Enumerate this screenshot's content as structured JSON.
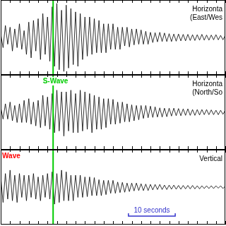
{
  "chart_data": [
    {
      "type": "line",
      "title": [
        "Horizonta",
        "(East/Wes"
      ],
      "color": "#000000",
      "tick_labels": false,
      "grid": false,
      "xlim": [
        0,
        48
      ],
      "xticks": [
        0,
        2,
        4,
        6,
        8,
        10,
        12,
        14,
        16,
        18,
        20,
        22,
        24,
        26,
        28,
        30,
        32,
        34,
        36,
        38,
        40,
        42,
        44,
        46,
        48
      ],
      "ylim": [
        -1.1,
        1.1
      ],
      "vlines": [
        {
          "x": 11.2,
          "color": "#00cc00"
        }
      ],
      "annotations": [],
      "x": [
        0,
        0.5,
        1,
        1.5,
        2,
        2.5,
        3,
        3.5,
        4,
        4.5,
        5,
        5.5,
        6,
        6.5,
        7,
        7.5,
        8,
        8.5,
        9,
        9.5,
        10,
        10.5,
        11,
        11.5,
        12,
        12.5,
        13,
        13.5,
        14,
        14.5,
        15,
        15.5,
        16,
        16.5,
        17,
        17.5,
        18,
        18.5,
        19,
        19.5,
        20,
        20.5,
        21,
        21.5,
        22,
        22.5,
        23,
        23.5,
        24,
        24.5,
        25,
        25.5,
        26,
        26.5,
        27,
        27.5,
        28,
        28.5,
        29,
        29.5,
        30,
        30.5,
        31,
        31.5,
        32,
        32.5,
        33,
        33.5,
        34,
        34.5,
        35,
        35.5,
        36,
        36.5,
        37,
        37.5,
        38,
        38.5,
        39,
        39.5,
        40,
        40.5,
        41,
        41.5,
        42,
        42.5,
        43,
        43.5,
        44,
        44.5,
        45,
        45.5,
        46,
        46.5,
        47,
        47.5,
        48
      ],
      "values": [
        0.1,
        -0.3,
        0.35,
        -0.2,
        0.3,
        -0.4,
        0.25,
        -0.3,
        0.4,
        -0.35,
        0.2,
        -0.5,
        0.45,
        -0.6,
        0.5,
        -0.4,
        0.55,
        -0.65,
        0.7,
        -0.5,
        0.6,
        -0.7,
        0.9,
        -0.85,
        1.0,
        -0.95,
        0.8,
        -1.0,
        0.95,
        -0.9,
        0.85,
        -0.8,
        0.75,
        -0.85,
        0.7,
        -0.65,
        0.6,
        -0.55,
        0.6,
        -0.5,
        0.55,
        -0.45,
        0.5,
        -0.45,
        0.4,
        -0.45,
        0.4,
        -0.35,
        0.4,
        -0.35,
        0.3,
        -0.35,
        0.3,
        -0.25,
        0.3,
        -0.28,
        0.25,
        -0.22,
        0.25,
        -0.2,
        0.22,
        -0.2,
        0.18,
        -0.2,
        0.15,
        -0.15,
        0.14,
        -0.13,
        0.15,
        -0.12,
        0.13,
        -0.12,
        0.11,
        -0.12,
        0.1,
        -0.11,
        0.1,
        -0.1,
        0.09,
        -0.1,
        0.09,
        -0.09,
        0.08,
        -0.09,
        0.08,
        -0.08,
        0.09,
        -0.08,
        0.07,
        -0.08,
        0.07,
        -0.07,
        0.08,
        -0.07,
        0.06,
        -0.07,
        0.06
      ]
    },
    {
      "type": "line",
      "title": [
        "Horizonta",
        "(North/So"
      ],
      "color": "#000000",
      "tick_labels": false,
      "grid": false,
      "xlim": [
        0,
        48
      ],
      "xticks": [
        0,
        2,
        4,
        6,
        8,
        10,
        12,
        14,
        16,
        18,
        20,
        22,
        24,
        26,
        28,
        30,
        32,
        34,
        36,
        38,
        40,
        42,
        44,
        46,
        48
      ],
      "ylim": [
        -1.1,
        1.1
      ],
      "vlines": [
        {
          "x": 11.2,
          "color": "#00cc00"
        }
      ],
      "annotations": [
        {
          "text": "S-Wave",
          "x": 8.7,
          "color": "#00cc00"
        }
      ],
      "x": [
        0,
        0.5,
        1,
        1.5,
        2,
        2.5,
        3,
        3.5,
        4,
        4.5,
        5,
        5.5,
        6,
        6.5,
        7,
        7.5,
        8,
        8.5,
        9,
        9.5,
        10,
        10.5,
        11,
        11.5,
        12,
        12.5,
        13,
        13.5,
        14,
        14.5,
        15,
        15.5,
        16,
        16.5,
        17,
        17.5,
        18,
        18.5,
        19,
        19.5,
        20,
        20.5,
        21,
        21.5,
        22,
        22.5,
        23,
        23.5,
        24,
        24.5,
        25,
        25.5,
        26,
        26.5,
        27,
        27.5,
        28,
        28.5,
        29,
        29.5,
        30,
        30.5,
        31,
        31.5,
        32,
        32.5,
        33,
        33.5,
        34,
        34.5,
        35,
        35.5,
        36,
        36.5,
        37,
        37.5,
        38,
        38.5,
        39,
        39.5,
        40,
        40.5,
        41,
        41.5,
        42,
        42.5,
        43,
        43.5,
        44,
        44.5,
        45,
        45.5,
        46,
        46.5,
        47,
        47.5,
        48
      ],
      "values": [
        0.15,
        -0.2,
        0.25,
        -0.2,
        0.3,
        -0.25,
        0.2,
        -0.3,
        0.25,
        -0.3,
        0.35,
        -0.3,
        0.4,
        -0.35,
        0.3,
        -0.4,
        0.35,
        -0.45,
        0.5,
        -0.4,
        0.45,
        -0.5,
        0.55,
        -0.6,
        0.65,
        -0.55,
        0.6,
        -0.7,
        0.6,
        -0.55,
        0.65,
        -0.6,
        0.55,
        -0.6,
        0.65,
        -0.55,
        0.6,
        -0.5,
        0.55,
        -0.6,
        0.5,
        -0.5,
        0.45,
        -0.5,
        0.4,
        -0.45,
        0.4,
        -0.35,
        0.38,
        -0.35,
        0.3,
        -0.32,
        0.3,
        -0.28,
        0.25,
        -0.28,
        0.22,
        -0.25,
        0.2,
        -0.22,
        0.2,
        -0.18,
        0.2,
        -0.16,
        0.18,
        -0.15,
        0.16,
        -0.14,
        0.13,
        -0.14,
        0.12,
        -0.13,
        0.12,
        -0.11,
        0.12,
        -0.1,
        0.11,
        -0.1,
        0.1,
        -0.09,
        0.1,
        -0.09,
        0.08,
        -0.09,
        0.08,
        -0.08,
        0.08,
        -0.07,
        0.08,
        -0.07,
        0.07,
        -0.07,
        0.06,
        -0.07,
        0.06,
        -0.06,
        0.06
      ]
    },
    {
      "type": "line",
      "title": [
        "Vertical"
      ],
      "color": "#000000",
      "tick_labels": false,
      "grid": false,
      "xlim": [
        0,
        48
      ],
      "xticks": [
        0,
        2,
        4,
        6,
        8,
        10,
        12,
        14,
        16,
        18,
        20,
        22,
        24,
        26,
        28,
        30,
        32,
        34,
        36,
        38,
        40,
        42,
        44,
        46,
        48
      ],
      "ylim": [
        -1.1,
        1.1
      ],
      "vlines": [
        {
          "x": 11.2,
          "color": "#00cc00"
        }
      ],
      "annotations": [
        {
          "text": "Wave",
          "x": 0,
          "color": "#ff0000"
        }
      ],
      "scale_bar": {
        "text": "10 seconds",
        "x_start": 27.3,
        "x_end": 37.3,
        "color": "#3333cc"
      },
      "x": [
        0,
        0.5,
        1,
        1.5,
        2,
        2.5,
        3,
        3.5,
        4,
        4.5,
        5,
        5.5,
        6,
        6.5,
        7,
        7.5,
        8,
        8.5,
        9,
        9.5,
        10,
        10.5,
        11,
        11.5,
        12,
        12.5,
        13,
        13.5,
        14,
        14.5,
        15,
        15.5,
        16,
        16.5,
        17,
        17.5,
        18,
        18.5,
        19,
        19.5,
        20,
        20.5,
        21,
        21.5,
        22,
        22.5,
        23,
        23.5,
        24,
        24.5,
        25,
        25.5,
        26,
        26.5,
        27,
        27.5,
        28,
        28.5,
        29,
        29.5,
        30,
        30.5,
        31,
        31.5,
        32,
        32.5,
        33,
        33.5,
        34,
        34.5,
        35,
        35.5,
        36,
        36.5,
        37,
        37.5,
        38,
        38.5,
        39,
        39.5,
        40,
        40.5,
        41,
        41.5,
        42,
        42.5,
        43,
        43.5,
        44,
        44.5,
        45,
        45.5,
        46,
        46.5,
        47,
        47.5,
        48
      ],
      "values": [
        0.3,
        -0.45,
        0.4,
        -0.35,
        0.5,
        -0.4,
        0.35,
        -0.45,
        0.4,
        -0.3,
        0.35,
        -0.4,
        0.35,
        -0.3,
        0.4,
        -0.35,
        0.3,
        -0.4,
        0.35,
        -0.3,
        0.4,
        -0.35,
        0.45,
        -0.5,
        0.4,
        -0.45,
        0.5,
        -0.4,
        0.45,
        -0.4,
        0.35,
        -0.4,
        0.35,
        -0.3,
        0.35,
        -0.3,
        0.3,
        -0.28,
        0.3,
        -0.25,
        0.28,
        -0.25,
        0.22,
        -0.25,
        0.2,
        -0.22,
        0.2,
        -0.18,
        0.2,
        -0.18,
        0.15,
        -0.16,
        0.14,
        -0.15,
        0.12,
        -0.13,
        0.12,
        -0.11,
        0.12,
        -0.1,
        0.1,
        -0.1,
        0.09,
        -0.1,
        0.08,
        -0.08,
        0.08,
        -0.07,
        0.08,
        -0.07,
        0.06,
        -0.07,
        0.06,
        -0.06,
        0.06,
        -0.06,
        0.05,
        -0.06,
        0.05,
        -0.05,
        0.05,
        -0.05,
        0.05,
        -0.05,
        0.04,
        -0.05,
        0.04,
        -0.04,
        0.04,
        -0.04,
        0.04,
        -0.04,
        0.04,
        -0.03,
        0.04,
        -0.04,
        0.03
      ]
    }
  ]
}
